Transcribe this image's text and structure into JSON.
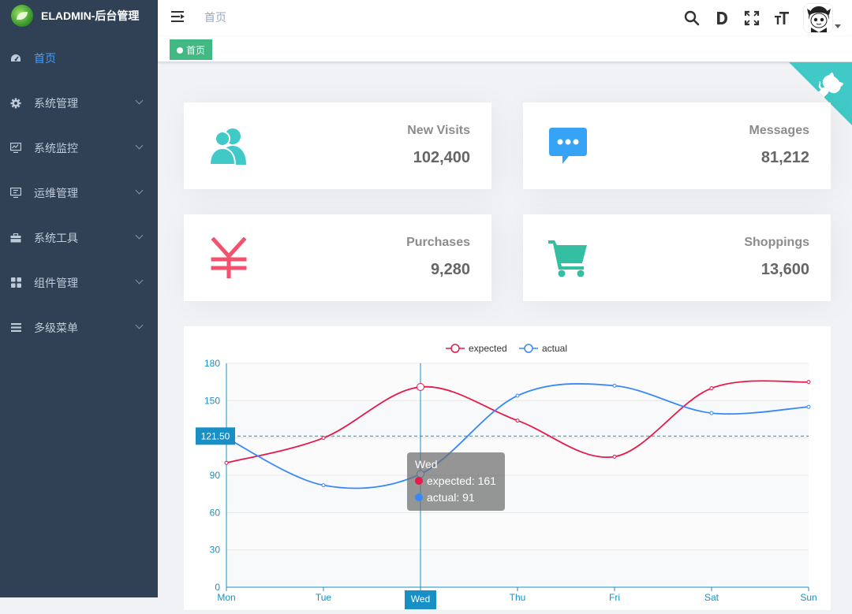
{
  "app": {
    "title": "ELADMIN-后台管理"
  },
  "sidebar": {
    "items": [
      {
        "label": "首页",
        "icon": "dashboard-icon",
        "active": true
      },
      {
        "label": "系统管理",
        "icon": "gear-icon"
      },
      {
        "label": "系统监控",
        "icon": "monitor-icon"
      },
      {
        "label": "运维管理",
        "icon": "server-icon"
      },
      {
        "label": "系统工具",
        "icon": "toolbox-icon"
      },
      {
        "label": "组件管理",
        "icon": "grid-icon"
      },
      {
        "label": "多级菜单",
        "icon": "menu-icon"
      }
    ]
  },
  "navbar": {
    "breadcrumb": "首页",
    "icons": [
      "search-icon",
      "doc-icon",
      "fullscreen-icon",
      "font-size-icon"
    ]
  },
  "tags": [
    {
      "label": "首页",
      "active": true
    }
  ],
  "cards": [
    {
      "title": "New Visits",
      "value": "102,400",
      "icon": "people-icon",
      "color": "#40c9c6"
    },
    {
      "title": "Messages",
      "value": "81,212",
      "icon": "message-icon",
      "color": "#36a3f7"
    },
    {
      "title": "Purchases",
      "value": "9,280",
      "icon": "yen-icon",
      "color": "#f4516c"
    },
    {
      "title": "Shoppings",
      "value": "13,600",
      "icon": "cart-icon",
      "color": "#34bfa3"
    }
  ],
  "colors": {
    "sidebar_bg": "#304156",
    "active": "#409eff",
    "tag": "#42b983",
    "expected": "#e6194b",
    "actual": "#3888fa"
  },
  "chart_data": {
    "type": "line",
    "categories": [
      "Mon",
      "Tue",
      "Wed",
      "Thu",
      "Fri",
      "Sat",
      "Sun"
    ],
    "series": [
      {
        "name": "expected",
        "values": [
          100,
          120,
          161,
          134,
          105,
          160,
          165
        ],
        "color": "#e6194b"
      },
      {
        "name": "actual",
        "values": [
          120,
          82,
          91,
          154,
          162,
          140,
          145
        ],
        "color": "#3888fa"
      }
    ],
    "yticks": [
      "0",
      "30",
      "60",
      "90",
      "120",
      "150",
      "180"
    ],
    "ylim": [
      0,
      180
    ],
    "legend": "top-center",
    "hover": {
      "category": "Wed",
      "lines": [
        "expected: 161",
        "actual: 91"
      ],
      "crosshair_y_label": "121.50",
      "crosshair_y": 121.5
    }
  }
}
